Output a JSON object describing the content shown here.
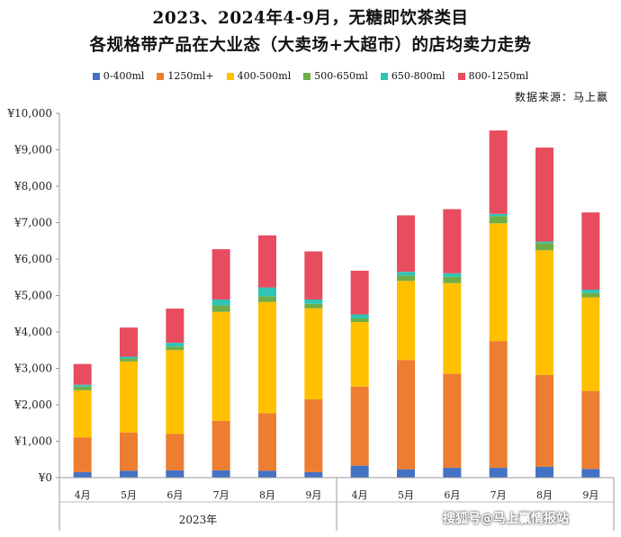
{
  "chart_data": {
    "type": "bar",
    "stacked": true,
    "title_line1": "2023、2024年4-9月，无糖即饮茶类目",
    "title_line2": "各规格带产品在大业态（大卖场+大超市）的店均卖力走势",
    "source_text": "数据来源：马上赢",
    "categories": [
      "4月",
      "5月",
      "6月",
      "7月",
      "8月",
      "9月",
      "4月",
      "5月",
      "6月",
      "7月",
      "8月",
      "9月"
    ],
    "groups": [
      {
        "label": "2023年",
        "span": [
          0,
          5
        ]
      },
      {
        "label": "",
        "span": [
          6,
          11
        ]
      }
    ],
    "y_ticks": [
      "¥0",
      "¥1,000",
      "¥2,000",
      "¥3,000",
      "¥4,000",
      "¥5,000",
      "¥6,000",
      "¥7,000",
      "¥8,000",
      "¥9,000",
      "¥10,000"
    ],
    "ylim": [
      0,
      10000
    ],
    "legend_position": "top",
    "series": [
      {
        "name": "0-400ml",
        "color": "#4472c4",
        "values": [
          150,
          190,
          200,
          200,
          190,
          150,
          330,
          230,
          270,
          270,
          300,
          240
        ]
      },
      {
        "name": "1250ml+",
        "color": "#ed7d31",
        "values": [
          950,
          1050,
          1000,
          1360,
          1580,
          2000,
          2170,
          3000,
          2580,
          3480,
          2520,
          2140
        ]
      },
      {
        "name": "400-500ml",
        "color": "#ffc000",
        "values": [
          1300,
          1950,
          2300,
          2990,
          3050,
          2500,
          1770,
          2170,
          2490,
          3230,
          3420,
          2570
        ]
      },
      {
        "name": "500-650ml",
        "color": "#70ad47",
        "values": [
          100,
          80,
          100,
          180,
          160,
          120,
          100,
          150,
          170,
          200,
          200,
          120
        ]
      },
      {
        "name": "650-800ml",
        "color": "#2ec4b6",
        "values": [
          50,
          50,
          100,
          160,
          240,
          120,
          110,
          100,
          100,
          60,
          40,
          90
        ]
      },
      {
        "name": "800-1250ml",
        "color": "#e84c5f",
        "values": [
          570,
          800,
          940,
          1380,
          1430,
          1320,
          1200,
          1550,
          1760,
          2290,
          2580,
          2120
        ]
      }
    ],
    "watermark": "搜狐号@马上赢情报站"
  }
}
